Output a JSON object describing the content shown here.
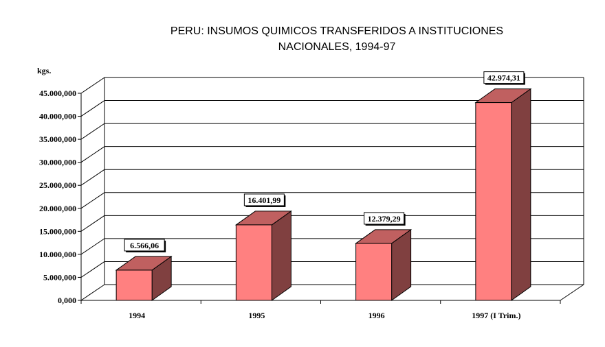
{
  "chart_data": {
    "type": "bar",
    "title_line1": "PERU: INSUMOS QUIMICOS TRANSFERIDOS A INSTITUCIONES",
    "title_line2": "NACIONALES, 1994-97",
    "ylabel": "kgs.",
    "categories": [
      "1994",
      "1995",
      "1996",
      "1997 (I Trim.)"
    ],
    "values": [
      6566.06,
      16401.99,
      12379.29,
      42974.31
    ],
    "data_labels": [
      "6.566,06",
      "16.401,99",
      "12.379,29",
      "42.974,31"
    ],
    "yticks": [
      {
        "value": 0,
        "label": "0,000"
      },
      {
        "value": 5000,
        "label": "5.000,000"
      },
      {
        "value": 10000,
        "label": "10.000,000"
      },
      {
        "value": 15000,
        "label": "15.000,000"
      },
      {
        "value": 20000,
        "label": "20.000,000"
      },
      {
        "value": 25000,
        "label": "25.000,000"
      },
      {
        "value": 30000,
        "label": "30.000,000"
      },
      {
        "value": 35000,
        "label": "35.000,000"
      },
      {
        "value": 40000,
        "label": "40.000,000"
      },
      {
        "value": 45000,
        "label": "45.000,000"
      }
    ],
    "ylim": [
      0,
      45000
    ],
    "grid": true,
    "colors": {
      "front": "#ff8080",
      "side": "#804040",
      "top": "#c06060"
    }
  }
}
